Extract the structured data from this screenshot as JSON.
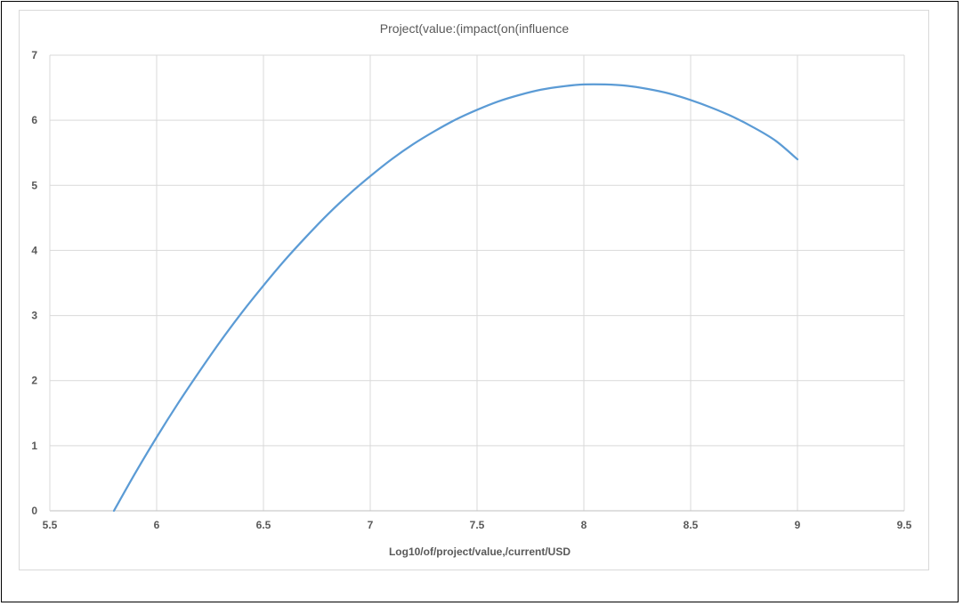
{
  "chart_data": {
    "type": "line",
    "title": "Project(value:(impact(on(influence",
    "xlabel": "Log10/of/project/value,/current/USD",
    "ylabel": "",
    "xlim": [
      5.5,
      9.5
    ],
    "ylim": [
      0,
      7
    ],
    "x_ticks": [
      "5.5",
      "6",
      "6.5",
      "7",
      "7.5",
      "8",
      "8.5",
      "9",
      "9.5"
    ],
    "y_ticks": [
      "0",
      "1",
      "2",
      "3",
      "4",
      "5",
      "6",
      "7"
    ],
    "grid": true,
    "legend": "none",
    "series": [
      {
        "color": "#5b9bd5",
        "x": [
          5.8,
          5.9,
          6.0,
          6.1,
          6.2,
          6.3,
          6.4,
          6.5,
          6.6,
          6.7,
          6.8,
          6.9,
          7.0,
          7.1,
          7.2,
          7.3,
          7.4,
          7.5,
          7.6,
          7.7,
          7.8,
          7.9,
          8.0,
          8.1,
          8.2,
          8.3,
          8.4,
          8.5,
          8.6,
          8.7,
          8.8,
          8.9,
          9.0
        ],
        "y": [
          0.0,
          0.58,
          1.13,
          1.65,
          2.14,
          2.61,
          3.05,
          3.46,
          3.85,
          4.21,
          4.55,
          4.86,
          5.14,
          5.4,
          5.63,
          5.83,
          6.01,
          6.16,
          6.29,
          6.39,
          6.47,
          6.52,
          6.55,
          6.55,
          6.53,
          6.48,
          6.41,
          6.31,
          6.19,
          6.05,
          5.88,
          5.68,
          5.4
        ]
      }
    ]
  }
}
